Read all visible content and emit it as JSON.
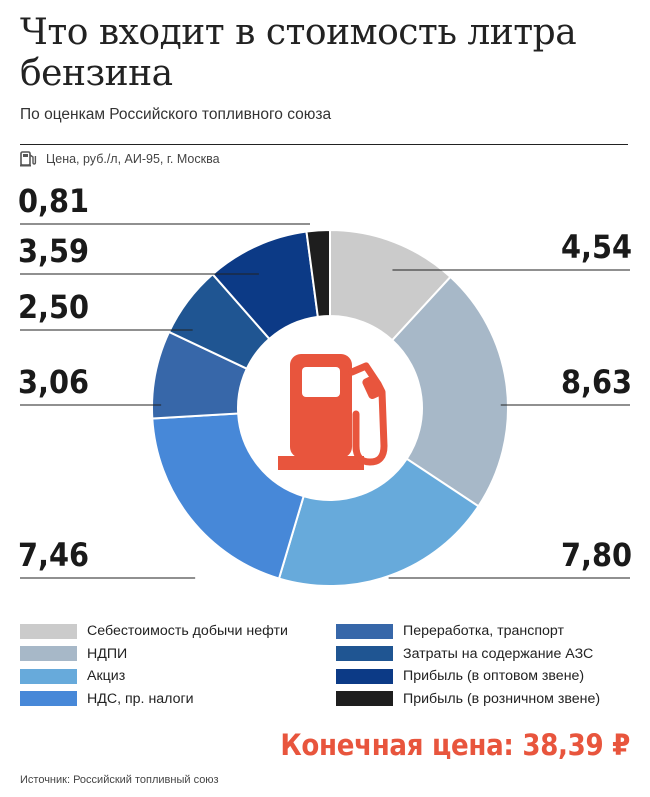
{
  "title": "Что входит в стоимость литра бензина",
  "subtitle": "По оценкам Российского топливного союза",
  "note": "Цена, руб./л, АИ-95, г. Москва",
  "final_price": "Конечная цена: 38,39 ₽",
  "source": "Источник: Российский топливный союз",
  "center_icon": "fuel-pump-icon",
  "note_icon": "fuel-pump-icon",
  "colors": {
    "accent": "#e8553d",
    "text": "#222222"
  },
  "chart_data": {
    "type": "pie",
    "donut": true,
    "unit": "руб./л",
    "total": 38.39,
    "slices": [
      {
        "name": "Себестоимость добычи нефти",
        "value": 4.54,
        "label": "4,54",
        "color": "#cbcbcb",
        "label_side": "right"
      },
      {
        "name": "НДПИ",
        "value": 8.63,
        "label": "8,63",
        "color": "#a7b8c8",
        "label_side": "right"
      },
      {
        "name": "Акциз",
        "value": 7.8,
        "label": "7,80",
        "color": "#67aadb",
        "label_side": "right"
      },
      {
        "name": "НДС, пр. налоги",
        "value": 7.46,
        "label": "7,46",
        "color": "#4788d8",
        "label_side": "left"
      },
      {
        "name": "Переработка, транспорт",
        "value": 3.06,
        "label": "3,06",
        "color": "#3767a9",
        "label_side": "left"
      },
      {
        "name": "Затраты на содержание АЗС",
        "value": 2.5,
        "label": "2,50",
        "color": "#1f5592",
        "label_side": "left"
      },
      {
        "name": "Прибыль (в оптовом звене)",
        "value": 3.59,
        "label": "3,59",
        "color": "#0c3a86",
        "label_side": "left"
      },
      {
        "name": "Прибыль (в розничном звене)",
        "value": 0.81,
        "label": "0,81",
        "color": "#1e1e1e",
        "label_side": "left"
      }
    ]
  },
  "legend": [
    {
      "label": "Себестоимость добычи нефти",
      "color": "#cbcbcb"
    },
    {
      "label": "НДПИ",
      "color": "#a7b8c8"
    },
    {
      "label": "Акциз",
      "color": "#67aadb"
    },
    {
      "label": "НДС, пр. налоги",
      "color": "#4788d8"
    },
    {
      "label": "Переработка, транспорт",
      "color": "#3767a9"
    },
    {
      "label": "Затраты на содержание АЗС",
      "color": "#1f5592"
    },
    {
      "label": "Прибыль (в оптовом звене)",
      "color": "#0c3a86"
    },
    {
      "label": "Прибыль (в розничном звене)",
      "color": "#1e1e1e"
    }
  ]
}
